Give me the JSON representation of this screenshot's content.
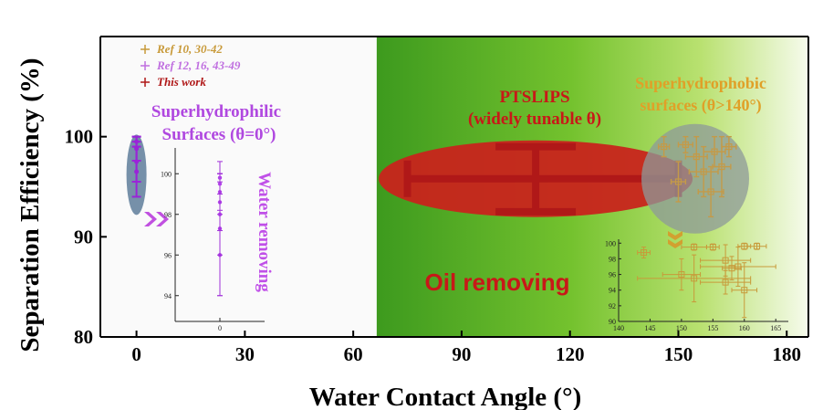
{
  "chart_data": {
    "type": "scatter",
    "xlabel": "Water Contact Angle (°)",
    "ylabel": "Separation Efficiency (%)",
    "xlim": [
      -10,
      186
    ],
    "ylim": [
      80,
      110
    ],
    "x_ticks": [
      0,
      30,
      60,
      90,
      120,
      150,
      180
    ],
    "y_ticks": [
      80,
      90,
      100
    ],
    "legend": {
      "placement": "top-left",
      "entries": [
        {
          "label": "Ref 10, 30-42",
          "color": "#c89a3a"
        },
        {
          "label": "Ref 12, 16, 43-49",
          "color": "#c070e0"
        },
        {
          "label": "This work",
          "color": "#b01818"
        }
      ]
    },
    "regions": [
      {
        "label_line1": "Superhydrophilic",
        "label_line2": "Surfaces (θ=0°)",
        "color": "#b048e0"
      },
      {
        "label_line1": "PTSLIPS",
        "label_line2": "(widely tunable θ)",
        "color": "#c81818"
      },
      {
        "label_line1": "Superhydrophobic",
        "label_line2": "surfaces (θ>140°)",
        "color": "#e0a028"
      }
    ],
    "annotations": {
      "water_removing": "Water removing",
      "oil_removing": "Oil removing"
    },
    "this_work": {
      "x": [
        75,
        150
      ],
      "x_center": 110.5,
      "y": [
        92.5,
        99
      ],
      "y_center": 95.8
    },
    "superhydrophilic_points": [
      {
        "x": 0,
        "y": 96.5,
        "yerr": 2.5
      },
      {
        "x": 0,
        "y": 97.5,
        "yerr": 2.0
      },
      {
        "x": 0,
        "y": 98.8,
        "yerr": 1.2
      },
      {
        "x": 0,
        "y": 99.5,
        "yerr": 0.5
      }
    ],
    "superhydrophobic_points": [
      {
        "x": 146,
        "y": 99.0,
        "xerr": 1.5,
        "yerr": 1.0
      },
      {
        "x": 152,
        "y": 99.2,
        "xerr": 2.0,
        "yerr": 0.8
      },
      {
        "x": 155,
        "y": 98.0,
        "xerr": 3.0,
        "yerr": 2.0
      },
      {
        "x": 157,
        "y": 96.5,
        "xerr": 4.0,
        "yerr": 2.5
      },
      {
        "x": 160,
        "y": 98.5,
        "xerr": 3.0,
        "yerr": 1.5
      },
      {
        "x": 162,
        "y": 97.0,
        "xerr": 2.5,
        "yerr": 3.0
      },
      {
        "x": 150,
        "y": 95.5,
        "xerr": 2.0,
        "yerr": 2.0
      },
      {
        "x": 164,
        "y": 99.0,
        "xerr": 2.0,
        "yerr": 1.0
      },
      {
        "x": 159,
        "y": 94.5,
        "xerr": 3.5,
        "yerr": 2.5
      }
    ],
    "inset_left": {
      "yticks": [
        94,
        96,
        98,
        100
      ],
      "ylim": [
        93,
        101
      ],
      "xtick": "0",
      "points": [
        {
          "y": 96.0,
          "yerr": 2.0
        },
        {
          "y": 97.3,
          "yerr": 3.3
        },
        {
          "y": 98.0,
          "yerr": 2.0
        },
        {
          "y": 98.6,
          "yerr": 1.4
        },
        {
          "y": 99.1,
          "yerr": 0.9
        },
        {
          "y": 99.5,
          "yerr": 0.5
        },
        {
          "y": 99.8,
          "yerr": 0.2
        }
      ]
    },
    "inset_right": {
      "xticks": [
        140,
        145,
        150,
        155,
        160,
        165
      ],
      "yticks": [
        90,
        92,
        94,
        96,
        98,
        100
      ],
      "xlim": [
        140,
        167
      ],
      "ylim": [
        90,
        100.5
      ],
      "points": [
        {
          "x": 144,
          "y": 98.8,
          "xerr": 1.0,
          "yerr": 0.7
        },
        {
          "x": 152,
          "y": 99.5,
          "xerr": 2.0,
          "yerr": 0.4
        },
        {
          "x": 155,
          "y": 99.5,
          "xerr": 1.0,
          "yerr": 0.4
        },
        {
          "x": 157,
          "y": 97.8,
          "xerr": 4.0,
          "yerr": 2.0
        },
        {
          "x": 159,
          "y": 97.0,
          "xerr": 6.0,
          "yerr": 2.5
        },
        {
          "x": 160,
          "y": 99.6,
          "xerr": 1.0,
          "yerr": 0.4
        },
        {
          "x": 150,
          "y": 96.0,
          "xerr": 3.0,
          "yerr": 2.0
        },
        {
          "x": 152,
          "y": 95.5,
          "xerr": 9.0,
          "yerr": 3.0
        },
        {
          "x": 158,
          "y": 96.8,
          "xerr": 1.5,
          "yerr": 1.5
        },
        {
          "x": 160,
          "y": 94.0,
          "xerr": 2.0,
          "yerr": 3.5
        },
        {
          "x": 157,
          "y": 95.0,
          "xerr": 4.0,
          "yerr": 1.5
        },
        {
          "x": 162,
          "y": 99.6,
          "xerr": 1.5,
          "yerr": 0.4
        }
      ]
    }
  }
}
